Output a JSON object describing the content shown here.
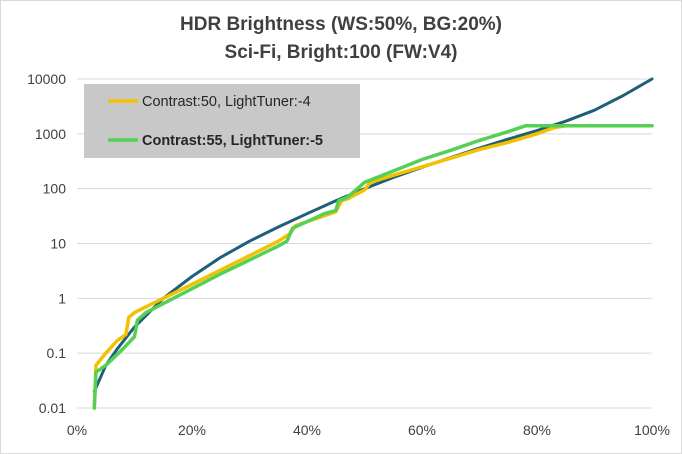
{
  "chart_data": {
    "type": "line",
    "title": "HDR Brightness (WS:50%, BG:20%)",
    "subtitle": "Sci-Fi, Bright:100 (FW:V4)",
    "xlabel": "",
    "ylabel": "",
    "x_scale": "linear",
    "y_scale": "log",
    "xlim": [
      0,
      100
    ],
    "ylim": [
      0.01,
      10000
    ],
    "x_ticks": [
      0,
      20,
      40,
      60,
      80,
      100
    ],
    "x_tick_labels": [
      "0%",
      "20%",
      "40%",
      "60%",
      "80%",
      "100%"
    ],
    "y_ticks": [
      0.01,
      0.1,
      1,
      10,
      100,
      1000,
      10000
    ],
    "y_tick_labels": [
      "0.01",
      "0.1",
      "1",
      "10",
      "100",
      "1000",
      "10000"
    ],
    "grid": "horizontal",
    "legend_position": "top-left",
    "series": [
      {
        "name": "",
        "color": "#1f5f7a",
        "x": [
          3,
          5,
          7,
          10,
          15,
          20,
          25,
          30,
          35,
          40,
          45,
          50,
          55,
          60,
          65,
          70,
          75,
          80,
          85,
          90,
          95,
          100
        ],
        "y": [
          0.02,
          0.06,
          0.12,
          0.3,
          1.0,
          2.5,
          5.6,
          11,
          20,
          35,
          60,
          100,
          160,
          245,
          370,
          550,
          800,
          1150,
          1700,
          2700,
          5000,
          10000
        ]
      },
      {
        "name": "Contrast:50, LightTuner:-4",
        "color": "#f2c100",
        "x": [
          3,
          3.3,
          5,
          7,
          8.5,
          9,
          10,
          12,
          15,
          20,
          25,
          30,
          35,
          37,
          38,
          40,
          45,
          46,
          47,
          50,
          51,
          55,
          60,
          65,
          70,
          75,
          80,
          83,
          85,
          90,
          95,
          100
        ],
        "y": [
          0.01,
          0.06,
          0.1,
          0.17,
          0.22,
          0.45,
          0.55,
          0.7,
          1.0,
          1.8,
          3.3,
          6.0,
          11,
          15,
          21,
          25,
          38,
          60,
          65,
          95,
          130,
          175,
          250,
          360,
          520,
          700,
          1000,
          1300,
          1400,
          1400,
          1400,
          1400
        ]
      },
      {
        "name": "Contrast:55, LightTuner:-5",
        "color": "#55d055",
        "x": [
          3,
          3.3,
          5,
          8,
          10,
          10.5,
          12,
          15,
          20,
          25,
          30,
          35,
          36.5,
          37.5,
          40,
          43,
          45,
          45.5,
          47,
          48,
          50,
          55,
          60,
          65,
          70,
          75,
          78,
          80,
          85,
          90,
          95,
          100
        ],
        "y": [
          0.01,
          0.045,
          0.06,
          0.12,
          0.2,
          0.4,
          0.55,
          0.8,
          1.5,
          2.8,
          5.0,
          9.0,
          11,
          19,
          25,
          35,
          40,
          60,
          70,
          85,
          130,
          210,
          340,
          500,
          760,
          1100,
          1400,
          1400,
          1400,
          1400,
          1400,
          1400
        ]
      }
    ]
  }
}
